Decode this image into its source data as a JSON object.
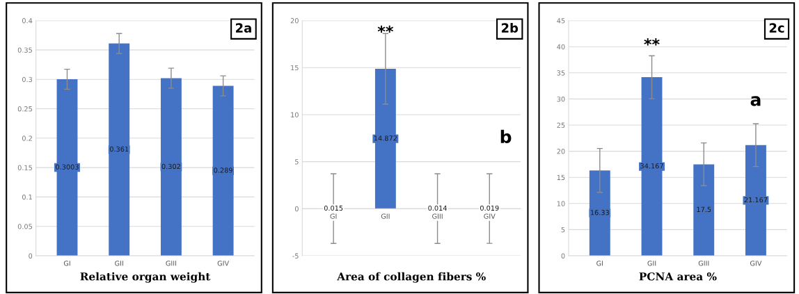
{
  "chart_data": [
    {
      "type": "bar",
      "xlabel": "Relative organ weight",
      "categories": [
        "GI",
        "GII",
        "GIII",
        "GIV"
      ],
      "color": "#4472c4",
      "values": [
        0.3003,
        0.361,
        0.302,
        0.289
      ],
      "errors": [
        0.017,
        0.017,
        0.017,
        0.017
      ],
      "ylim": [
        0,
        0.4
      ],
      "yticks": [
        0,
        0.05,
        0.1,
        0.15,
        0.2,
        0.25,
        0.3,
        0.35,
        0.4
      ],
      "grid": "y",
      "data_labels": true,
      "annotations": [
        "2a"
      ]
    },
    {
      "type": "bar",
      "xlabel": "Area of collagen fibers %",
      "categories": [
        "GI",
        "GII",
        "GIII",
        "GIV"
      ],
      "color": "#4472c4",
      "values": [
        0.015,
        14.872,
        0.014,
        0.019
      ],
      "errors": [
        3.7,
        3.75,
        3.7,
        3.7
      ],
      "ylim": [
        -5,
        20
      ],
      "yticks": [
        -5,
        0,
        5,
        10,
        15,
        20
      ],
      "grid": "y",
      "data_labels": true,
      "annotations": [
        "2b",
        "**",
        "b"
      ]
    },
    {
      "type": "bar",
      "xlabel": "PCNA area %",
      "categories": [
        "GI",
        "GII",
        "GIII",
        "GIV"
      ],
      "color": "#4472c4",
      "values": [
        16.33,
        34.167,
        17.5,
        21.167
      ],
      "errors": [
        4.2,
        4.1,
        4.1,
        4.1
      ],
      "ylim": [
        0,
        45
      ],
      "yticks": [
        0,
        5,
        10,
        15,
        20,
        25,
        30,
        35,
        40,
        45
      ],
      "grid": "y",
      "data_labels": true,
      "annotations": [
        "2c",
        "**",
        "a"
      ]
    }
  ]
}
